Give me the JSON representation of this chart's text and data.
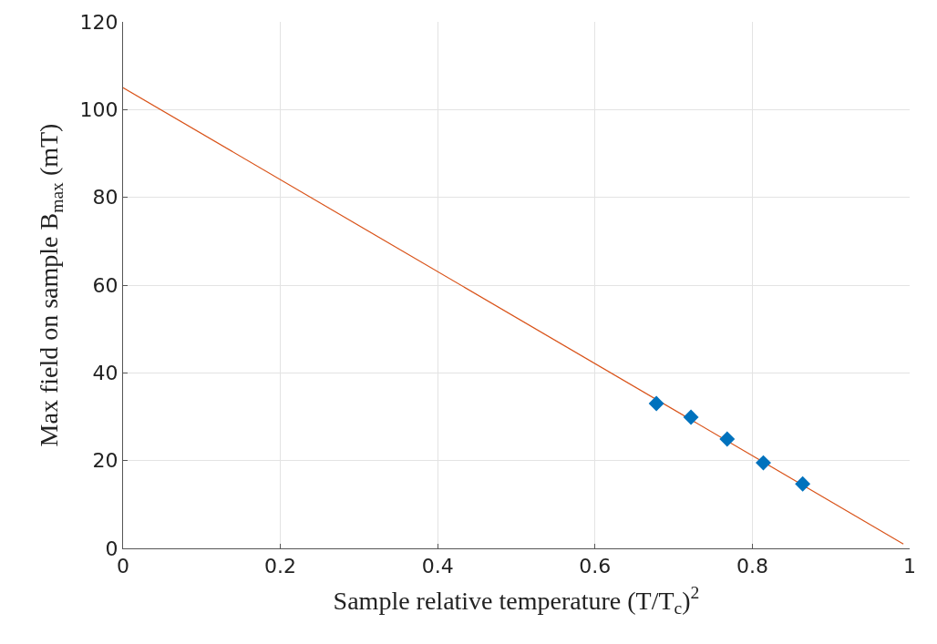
{
  "chart_data": {
    "type": "scatter",
    "xlabel": "Sample relative temperature (T/T$_{c}$)$^{2}$",
    "ylabel": "Max field on sample B$_{max}$ (mT)",
    "xlim": [
      0,
      1
    ],
    "xticks": [
      0,
      0.2,
      0.4,
      0.6,
      0.8,
      1
    ],
    "ylim": [
      0,
      120
    ],
    "yticks": [
      0,
      20,
      40,
      60,
      80,
      100,
      120
    ],
    "grid": true,
    "series": [
      {
        "type": "line",
        "color": "#d95319",
        "x": [
          0,
          0.992
        ],
        "values": [
          105,
          1
        ],
        "marker": "none",
        "line_style": "solid"
      },
      {
        "color": "#0072bd",
        "x": [
          0.678,
          0.722,
          0.768,
          0.814,
          0.864
        ],
        "values": [
          33,
          29.9,
          24.9,
          19.5,
          14.7
        ],
        "marker": "diamond"
      }
    ]
  }
}
